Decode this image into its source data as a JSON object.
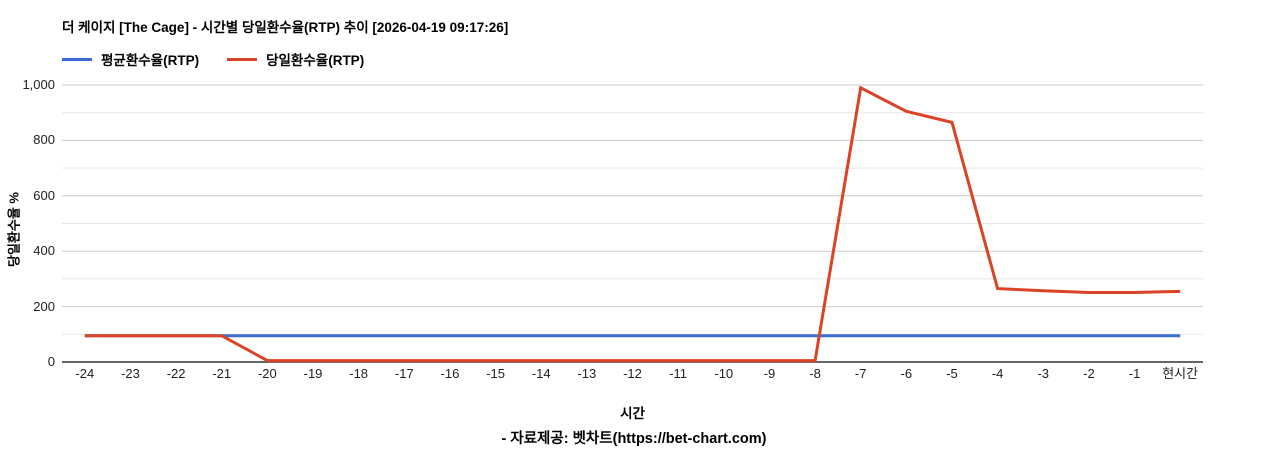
{
  "title": "더 케이지 [The Cage] - 시간별 당일환수율(RTP) 추이 [2026-04-19 09:17:26]",
  "legend": [
    {
      "label": "평균환수율(RTP)",
      "color": "#3B6CD6"
    },
    {
      "label": "당일환수율(RTP)",
      "color": "#DB4325"
    }
  ],
  "footer": "- 자료제공: 벳차트(https://bet-chart.com)",
  "colors": {
    "grid_major": "#cbcbcb",
    "grid_minor": "#e7e7e7",
    "axis": "#333333",
    "tick_text": "#222222"
  },
  "chart_data": {
    "type": "line",
    "title": "더 케이지 [The Cage] - 시간별 당일환수율(RTP) 추이 [2026-04-19 09:17:26]",
    "xlabel": "시간",
    "ylabel": "당일환수율 %",
    "ylim": [
      0,
      1000
    ],
    "ytick_step_major": 200,
    "ytick_step_minor": 100,
    "ytick_labels": [
      "0",
      "200",
      "400",
      "600",
      "800",
      "1,000"
    ],
    "grid": true,
    "legend_position": "top",
    "categories": [
      "-24",
      "-23",
      "-22",
      "-21",
      "-20",
      "-19",
      "-18",
      "-17",
      "-16",
      "-15",
      "-14",
      "-13",
      "-12",
      "-11",
      "-10",
      "-9",
      "-8",
      "-7",
      "-6",
      "-5",
      "-4",
      "-3",
      "-2",
      "-1",
      "현시간"
    ],
    "series": [
      {
        "name": "평균환수율(RTP)",
        "color": "#3B6CD6",
        "values": [
          95,
          95,
          95,
          95,
          95,
          95,
          95,
          95,
          95,
          95,
          95,
          95,
          95,
          95,
          95,
          95,
          95,
          95,
          95,
          95,
          95,
          95,
          95,
          95,
          95
        ]
      },
      {
        "name": "당일환수율(RTP)",
        "color": "#DB4325",
        "values": [
          95,
          95,
          95,
          95,
          5,
          5,
          5,
          5,
          5,
          5,
          5,
          5,
          5,
          5,
          5,
          5,
          5,
          990,
          905,
          865,
          265,
          257,
          251,
          251,
          255
        ]
      }
    ]
  }
}
